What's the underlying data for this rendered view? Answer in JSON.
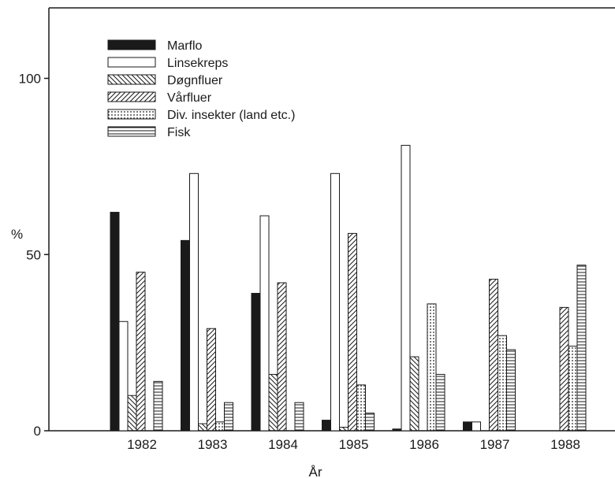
{
  "chart_data": {
    "type": "bar",
    "xlabel": "År",
    "ylabel": "%",
    "ylim": [
      0,
      120
    ],
    "y_ticks": [
      0,
      50,
      100
    ],
    "categories": [
      "1982",
      "1983",
      "1984",
      "1985",
      "1986",
      "1987",
      "1988"
    ],
    "legend_position": "top-left",
    "grid": false,
    "series": [
      {
        "name": "Marflo",
        "pattern": "solid",
        "values": [
          62,
          54,
          39,
          3,
          0.5,
          2.5,
          0
        ]
      },
      {
        "name": "Linsekreps",
        "pattern": "empty",
        "values": [
          31,
          73,
          61,
          73,
          81,
          2.5,
          0
        ]
      },
      {
        "name": "Døgnfluer",
        "pattern": "back-diagonal",
        "values": [
          10,
          2,
          16,
          1,
          21,
          0,
          0
        ]
      },
      {
        "name": "Vårfluer",
        "pattern": "forward-diagonal",
        "values": [
          45,
          29,
          42,
          56,
          0,
          43,
          35
        ]
      },
      {
        "name": "Div. insekter (land etc.)",
        "pattern": "dots",
        "values": [
          0,
          2.5,
          0,
          13,
          36,
          27,
          24
        ]
      },
      {
        "name": "Fisk",
        "pattern": "horizontal",
        "values": [
          14,
          8,
          8,
          5,
          16,
          23,
          47
        ]
      }
    ]
  }
}
